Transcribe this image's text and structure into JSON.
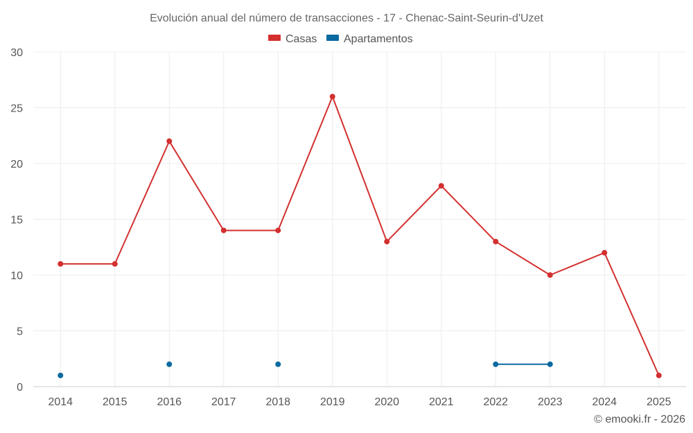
{
  "chart_data": {
    "type": "line",
    "title": "Evolución anual del número de transacciones - 17 - Chenac-Saint-Seurin-d'Uzet",
    "categories": [
      "2014",
      "2015",
      "2016",
      "2017",
      "2018",
      "2019",
      "2020",
      "2021",
      "2022",
      "2023",
      "2024",
      "2025"
    ],
    "ylim": [
      0,
      30
    ],
    "yticks": [
      0,
      5,
      10,
      15,
      20,
      25,
      30
    ],
    "grid": true,
    "legend_position": "top-center",
    "series": [
      {
        "name": "Casas",
        "color": "#d32f2f",
        "values": [
          11,
          11,
          22,
          14,
          14,
          26,
          13,
          18,
          13,
          10,
          12,
          1
        ]
      },
      {
        "name": "Apartamentos",
        "color": "#0a6aa1",
        "values": [
          1,
          null,
          2,
          null,
          2,
          null,
          null,
          null,
          2,
          2,
          null,
          null
        ]
      }
    ],
    "credit": "© emooki.fr - 2026"
  }
}
